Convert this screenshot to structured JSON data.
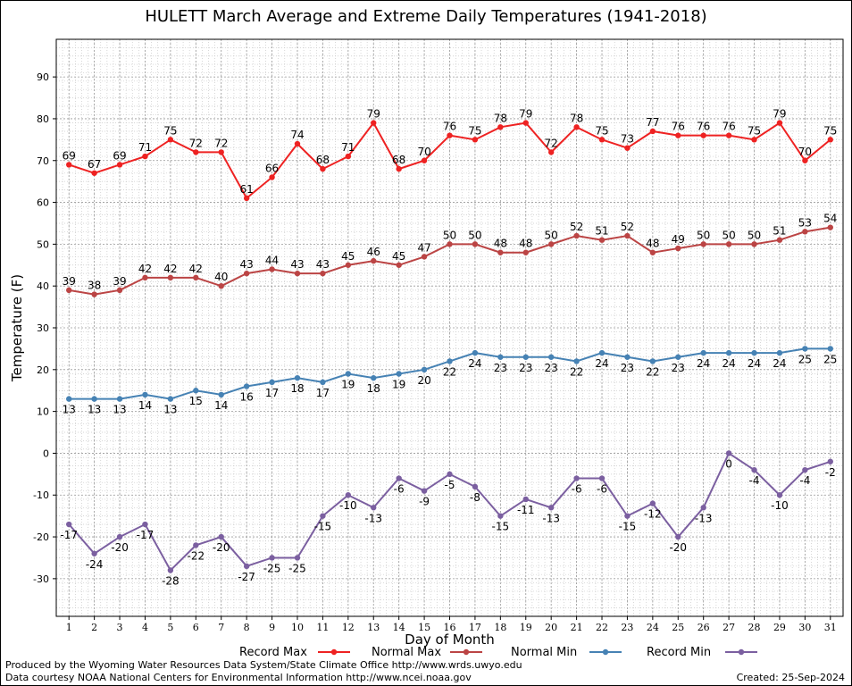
{
  "chart_data": {
    "type": "line",
    "title": "HULETT March Average and Extreme Daily Temperatures (1941-2018)",
    "xlabel": "Day of Month",
    "ylabel": "Temperature (F)",
    "ylim": [
      -39,
      99
    ],
    "xlim": [
      0.5,
      31.5
    ],
    "y_ticks": [
      -30,
      -20,
      -10,
      0,
      10,
      20,
      30,
      40,
      50,
      60,
      70,
      80,
      90
    ],
    "grid": true,
    "legend_position": "bottom",
    "x": [
      1,
      2,
      3,
      4,
      5,
      6,
      7,
      8,
      9,
      10,
      11,
      12,
      13,
      14,
      15,
      16,
      17,
      18,
      19,
      20,
      21,
      22,
      23,
      24,
      25,
      26,
      27,
      28,
      29,
      30,
      31
    ],
    "series": [
      {
        "name": "Record Max",
        "color": "#ee2222",
        "values": [
          69,
          67,
          69,
          71,
          75,
          72,
          72,
          61,
          66,
          74,
          68,
          71,
          79,
          68,
          70,
          76,
          75,
          78,
          79,
          72,
          78,
          75,
          73,
          77,
          76,
          76,
          76,
          75,
          79,
          70,
          75
        ],
        "label_pos": "above"
      },
      {
        "name": "Normal Max",
        "color": "#bb4444",
        "values": [
          39,
          38,
          39,
          42,
          42,
          42,
          40,
          43,
          44,
          43,
          43,
          45,
          46,
          45,
          47,
          50,
          50,
          48,
          48,
          50,
          52,
          51,
          52,
          48,
          49,
          50,
          50,
          50,
          51,
          53,
          54
        ],
        "label_pos": "above"
      },
      {
        "name": "Normal Min",
        "color": "#4682b4",
        "values": [
          13,
          13,
          13,
          14,
          13,
          15,
          14,
          16,
          17,
          18,
          17,
          19,
          18,
          19,
          20,
          22,
          24,
          23,
          23,
          23,
          22,
          24,
          23,
          22,
          23,
          24,
          24,
          24,
          24,
          25,
          25
        ],
        "label_pos": "below"
      },
      {
        "name": "Record Min",
        "color": "#7b5fa0",
        "values": [
          -17,
          -24,
          -20,
          -17,
          -28,
          -22,
          -20,
          -27,
          -25,
          -25,
          -15,
          -10,
          -13,
          -6,
          -9,
          -5,
          -8,
          -15,
          -11,
          -13,
          -6,
          -6,
          -15,
          -12,
          -20,
          -13,
          0,
          -4,
          -10,
          -4,
          -2
        ],
        "label_pos": "below"
      }
    ]
  },
  "footer": {
    "line1": "Produced by the Wyoming Water Resources Data System/State Climate Office http://www.wrds.uwyo.edu",
    "line2": "Data courtesy NOAA National Centers for Environmental Information http://www.ncei.noaa.gov",
    "created": "Created:  25-Sep-2024"
  }
}
